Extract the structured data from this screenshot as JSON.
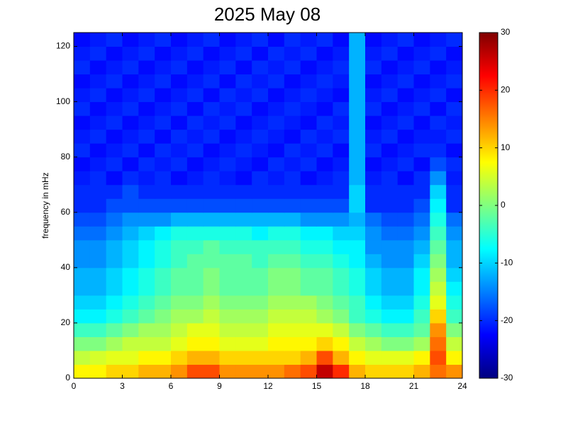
{
  "chart_data": {
    "type": "heatmap",
    "title": "2025 May 08",
    "y_label": "frequency in mHz",
    "colormap": "jet",
    "xlim": [
      0,
      24
    ],
    "ylim": [
      0,
      125
    ],
    "xticks": [
      0,
      3,
      6,
      9,
      12,
      15,
      18,
      21,
      24
    ],
    "yticks": [
      0,
      20,
      40,
      60,
      80,
      100,
      120
    ],
    "clim": [
      -30,
      30
    ],
    "cticks": [
      -30,
      -20,
      -10,
      0,
      10,
      20,
      30
    ],
    "xbins": [
      0,
      1,
      2,
      3,
      4,
      5,
      6,
      7,
      8,
      9,
      10,
      11,
      12,
      13,
      14,
      15,
      16,
      17,
      18,
      19,
      20,
      21,
      22,
      23,
      24
    ],
    "ybins": [
      0,
      5,
      10,
      15,
      20,
      25,
      30,
      35,
      40,
      45,
      50,
      55,
      60,
      65,
      70,
      75,
      80,
      85,
      90,
      95,
      100,
      105,
      110,
      115,
      120,
      125
    ],
    "z": [
      [
        8,
        8,
        10,
        10,
        12,
        12,
        14,
        18,
        18,
        14,
        14,
        14,
        14,
        16,
        18,
        26,
        20,
        12,
        10,
        10,
        10,
        12,
        16,
        14
      ],
      [
        4,
        5,
        6,
        6,
        8,
        8,
        10,
        12,
        12,
        10,
        10,
        10,
        10,
        10,
        12,
        18,
        12,
        8,
        6,
        6,
        6,
        8,
        18,
        8
      ],
      [
        0,
        0,
        2,
        4,
        4,
        4,
        6,
        8,
        8,
        6,
        6,
        6,
        8,
        8,
        8,
        10,
        8,
        4,
        2,
        0,
        0,
        2,
        16,
        4
      ],
      [
        -4,
        -4,
        -2,
        0,
        2,
        2,
        4,
        6,
        6,
        4,
        4,
        4,
        6,
        6,
        6,
        6,
        4,
        0,
        -2,
        -4,
        -4,
        -2,
        14,
        0
      ],
      [
        -8,
        -8,
        -6,
        -4,
        -2,
        0,
        2,
        2,
        4,
        2,
        2,
        2,
        4,
        4,
        4,
        2,
        0,
        -4,
        -6,
        -8,
        -8,
        -4,
        10,
        -4
      ],
      [
        -10,
        -10,
        -8,
        -6,
        -4,
        -2,
        0,
        0,
        2,
        0,
        0,
        0,
        2,
        2,
        2,
        0,
        -2,
        -4,
        -8,
        -10,
        -10,
        -6,
        6,
        -6
      ],
      [
        -12,
        -12,
        -10,
        -8,
        -6,
        -4,
        -2,
        -2,
        0,
        -2,
        -2,
        -2,
        0,
        0,
        -2,
        -2,
        -4,
        -6,
        -10,
        -12,
        -12,
        -8,
        4,
        -8
      ],
      [
        -12,
        -12,
        -10,
        -8,
        -6,
        -4,
        -2,
        -2,
        0,
        -2,
        -2,
        -2,
        0,
        0,
        -2,
        -2,
        -4,
        -6,
        -10,
        -12,
        -12,
        -8,
        2,
        -10
      ],
      [
        -14,
        -14,
        -12,
        -10,
        -8,
        -6,
        -4,
        -2,
        -2,
        -2,
        -2,
        -4,
        -2,
        -2,
        -4,
        -4,
        -6,
        -8,
        -12,
        -14,
        -14,
        -10,
        0,
        -12
      ],
      [
        -14,
        -14,
        -12,
        -10,
        -8,
        -6,
        -4,
        -4,
        -2,
        -4,
        -4,
        -4,
        -4,
        -4,
        -6,
        -6,
        -8,
        -8,
        -14,
        -14,
        -14,
        -12,
        -2,
        -12
      ],
      [
        -16,
        -16,
        -14,
        -12,
        -10,
        -8,
        -6,
        -6,
        -6,
        -6,
        -6,
        -8,
        -6,
        -6,
        -8,
        -8,
        -10,
        -10,
        -14,
        -16,
        -16,
        -14,
        -4,
        -14
      ],
      [
        -18,
        -18,
        -16,
        -14,
        -14,
        -14,
        -12,
        -12,
        -12,
        -12,
        -12,
        -12,
        -12,
        -12,
        -14,
        -14,
        -14,
        -12,
        -16,
        -18,
        -18,
        -16,
        -6,
        -16
      ],
      [
        -20,
        -20,
        -18,
        -18,
        -18,
        -18,
        -18,
        -18,
        -18,
        -18,
        -18,
        -18,
        -18,
        -18,
        -18,
        -18,
        -18,
        -10,
        -20,
        -20,
        -20,
        -18,
        -8,
        -20
      ],
      [
        -20,
        -20,
        -20,
        -18,
        -20,
        -20,
        -20,
        -20,
        -20,
        -20,
        -20,
        -20,
        -20,
        -20,
        -20,
        -20,
        -20,
        -10,
        -20,
        -20,
        -20,
        -20,
        -10,
        -20
      ],
      [
        -21,
        -20,
        -22,
        -20,
        -21,
        -20,
        -22,
        -21,
        -20,
        -21,
        -22,
        -20,
        -21,
        -20,
        -22,
        -21,
        -20,
        -12,
        -21,
        -20,
        -22,
        -20,
        -14,
        -21
      ],
      [
        -22,
        -21,
        -20,
        -22,
        -20,
        -21,
        -20,
        -22,
        -21,
        -20,
        -21,
        -22,
        -20,
        -21,
        -20,
        -22,
        -21,
        -12,
        -22,
        -21,
        -20,
        -22,
        -18,
        -20
      ],
      [
        -20,
        -22,
        -21,
        -20,
        -22,
        -20,
        -21,
        -20,
        -22,
        -21,
        -20,
        -21,
        -22,
        -20,
        -21,
        -20,
        -22,
        -12,
        -20,
        -22,
        -21,
        -20,
        -20,
        -22
      ],
      [
        -21,
        -20,
        -22,
        -21,
        -20,
        -22,
        -20,
        -21,
        -20,
        -22,
        -21,
        -20,
        -21,
        -22,
        -20,
        -21,
        -20,
        -12,
        -21,
        -20,
        -22,
        -21,
        -21,
        -20
      ],
      [
        -22,
        -21,
        -20,
        -22,
        -21,
        -20,
        -22,
        -20,
        -21,
        -20,
        -22,
        -21,
        -20,
        -21,
        -22,
        -20,
        -21,
        -12,
        -22,
        -21,
        -20,
        -22,
        -20,
        -21
      ],
      [
        -20,
        -22,
        -21,
        -20,
        -22,
        -21,
        -20,
        -22,
        -20,
        -21,
        -20,
        -22,
        -21,
        -20,
        -21,
        -22,
        -20,
        -12,
        -20,
        -22,
        -21,
        -20,
        -22,
        -20
      ],
      [
        -21,
        -20,
        -22,
        -21,
        -20,
        -22,
        -21,
        -20,
        -22,
        -20,
        -21,
        -20,
        -22,
        -21,
        -20,
        -21,
        -22,
        -12,
        -21,
        -20,
        -22,
        -21,
        -20,
        -22
      ],
      [
        -22,
        -21,
        -20,
        -22,
        -21,
        -20,
        -22,
        -21,
        -20,
        -22,
        -20,
        -21,
        -20,
        -22,
        -21,
        -20,
        -21,
        -12,
        -22,
        -21,
        -20,
        -22,
        -21,
        -20
      ],
      [
        -20,
        -22,
        -21,
        -20,
        -22,
        -21,
        -20,
        -22,
        -21,
        -20,
        -22,
        -20,
        -21,
        -20,
        -22,
        -21,
        -20,
        -12,
        -20,
        -22,
        -21,
        -20,
        -22,
        -21
      ],
      [
        -21,
        -20,
        -22,
        -21,
        -20,
        -22,
        -21,
        -20,
        -22,
        -21,
        -20,
        -22,
        -20,
        -21,
        -20,
        -22,
        -21,
        -12,
        -21,
        -20,
        -22,
        -21,
        -20,
        -22
      ],
      [
        -22,
        -21,
        -20,
        -22,
        -21,
        -20,
        -22,
        -21,
        -20,
        -22,
        -21,
        -20,
        -22,
        -20,
        -21,
        -20,
        -22,
        -12,
        -22,
        -21,
        -20,
        -22,
        -21,
        -20
      ]
    ]
  }
}
